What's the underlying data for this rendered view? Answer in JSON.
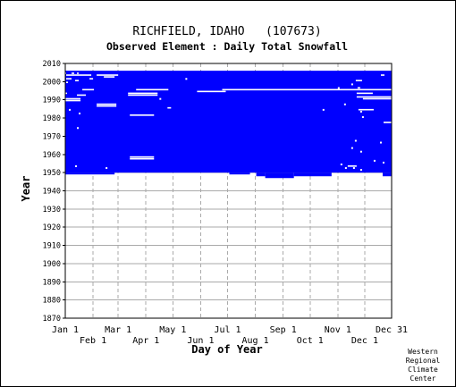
{
  "chart_data": {
    "type": "heatmap",
    "title": "RICHFIELD, IDAHO   (107673)",
    "subtitle": "Observed Element : Daily Total Snowfall",
    "xlabel": "Day of Year",
    "ylabel": "Year",
    "ylim": [
      1870,
      2010
    ],
    "xlim": [
      1,
      365
    ],
    "y_ticks": [
      1870,
      1880,
      1890,
      1900,
      1910,
      1920,
      1930,
      1940,
      1950,
      1960,
      1970,
      1980,
      1990,
      2000,
      2010
    ],
    "x_ticks_top_row": [
      {
        "label": "Jan 1",
        "day": 1
      },
      {
        "label": "Mar 1",
        "day": 60
      },
      {
        "label": "May 1",
        "day": 121
      },
      {
        "label": "Jul 1",
        "day": 182
      },
      {
        "label": "Sep 1",
        "day": 244
      },
      {
        "label": "Nov 1",
        "day": 305
      },
      {
        "label": "Dec 31",
        "day": 365
      }
    ],
    "x_ticks_bottom_row": [
      {
        "label": "Feb 1",
        "day": 32
      },
      {
        "label": "Apr 1",
        "day": 91
      },
      {
        "label": "Jun 1",
        "day": 152
      },
      {
        "label": "Aug 1",
        "day": 213
      },
      {
        "label": "Oct 1",
        "day": 274
      },
      {
        "label": "Dec 1",
        "day": 335
      }
    ],
    "grid": true,
    "colors": {
      "observed": "#0000ff",
      "missing": "#ffffff",
      "grid": "#aaaaaa",
      "frame": "#000000"
    },
    "data_block": {
      "year_start": 1950,
      "year_end": 2005,
      "day_start": 1,
      "day_end": 365
    },
    "lower_edge": [
      {
        "day_start": 1,
        "day_end": 56,
        "year": 1949
      },
      {
        "day_start": 56,
        "day_end": 184,
        "year": 1950
      },
      {
        "day_start": 184,
        "day_end": 207,
        "year": 1949
      },
      {
        "day_start": 207,
        "day_end": 214,
        "year": 1950
      },
      {
        "day_start": 214,
        "day_end": 224,
        "year": 1948
      },
      {
        "day_start": 224,
        "day_end": 256,
        "year": 1947
      },
      {
        "day_start": 256,
        "day_end": 298,
        "year": 1948
      },
      {
        "day_start": 298,
        "day_end": 355,
        "year": 1950
      },
      {
        "day_start": 355,
        "day_end": 365,
        "year": 1948
      }
    ],
    "missing_segments": [
      {
        "year": 2004,
        "day_start": 1,
        "day_end": 2
      },
      {
        "year": 2004,
        "day_start": 8,
        "day_end": 11
      },
      {
        "year": 2004,
        "day_start": 14,
        "day_end": 16
      },
      {
        "year": 2003,
        "day_start": 2,
        "day_end": 30
      },
      {
        "year": 2003,
        "day_start": 36,
        "day_end": 60
      },
      {
        "year": 2002,
        "day_start": 44,
        "day_end": 56
      },
      {
        "year": 2001,
        "day_start": 2,
        "day_end": 8
      },
      {
        "year": 2001,
        "day_start": 28,
        "day_end": 32
      },
      {
        "year": 2000,
        "day_start": 12,
        "day_end": 16
      },
      {
        "year": 1999,
        "day_start": 2,
        "day_end": 4
      },
      {
        "year": 2003,
        "day_start": 353,
        "day_end": 357
      },
      {
        "year": 2000,
        "day_start": 325,
        "day_end": 332
      },
      {
        "year": 1996,
        "day_start": 327,
        "day_end": 330
      },
      {
        "year": 1995,
        "day_start": 20,
        "day_end": 33
      },
      {
        "year": 1995,
        "day_start": 80,
        "day_end": 116
      },
      {
        "year": 1995,
        "day_start": 176,
        "day_end": 365
      },
      {
        "year": 1994,
        "day_start": 148,
        "day_end": 180
      },
      {
        "year": 1993,
        "day_start": 1,
        "day_end": 3
      },
      {
        "year": 1993,
        "day_start": 71,
        "day_end": 104
      },
      {
        "year": 1993,
        "day_start": 326,
        "day_end": 344
      },
      {
        "year": 1992,
        "day_start": 14,
        "day_end": 24
      },
      {
        "year": 1992,
        "day_start": 71,
        "day_end": 104
      },
      {
        "year": 1991,
        "day_start": 326,
        "day_end": 365
      },
      {
        "year": 1990,
        "day_start": 1,
        "day_end": 18
      },
      {
        "year": 1990,
        "day_start": 333,
        "day_end": 365
      },
      {
        "year": 1989,
        "day_start": 1,
        "day_end": 18
      },
      {
        "year": 1987,
        "day_start": 36,
        "day_end": 58
      },
      {
        "year": 1986,
        "day_start": 36,
        "day_end": 58
      },
      {
        "year": 1985,
        "day_start": 115,
        "day_end": 119
      },
      {
        "year": 1984,
        "day_start": 328,
        "day_end": 345
      },
      {
        "year": 1981,
        "day_start": 73,
        "day_end": 100
      },
      {
        "year": 1977,
        "day_start": 356,
        "day_end": 365
      },
      {
        "year": 1958,
        "day_start": 73,
        "day_end": 100
      },
      {
        "year": 1957,
        "day_start": 73,
        "day_end": 100
      },
      {
        "year": 1953,
        "day_start": 316,
        "day_end": 326
      }
    ],
    "speckles": [
      {
        "year": 2001,
        "day": 135
      },
      {
        "year": 1998,
        "day": 320
      },
      {
        "year": 1996,
        "day": 305
      },
      {
        "year": 1990,
        "day": 106
      },
      {
        "year": 1987,
        "day": 312
      },
      {
        "year": 1984,
        "day": 288
      },
      {
        "year": 1984,
        "day": 5
      },
      {
        "year": 1983,
        "day": 330
      },
      {
        "year": 1982,
        "day": 16
      },
      {
        "year": 1980,
        "day": 332
      },
      {
        "year": 1974,
        "day": 14
      },
      {
        "year": 1967,
        "day": 324
      },
      {
        "year": 1966,
        "day": 352
      },
      {
        "year": 1963,
        "day": 320
      },
      {
        "year": 1961,
        "day": 330
      },
      {
        "year": 1956,
        "day": 345
      },
      {
        "year": 1955,
        "day": 355
      },
      {
        "year": 1954,
        "day": 308
      },
      {
        "year": 1952,
        "day": 313
      },
      {
        "year": 1952,
        "day": 322
      },
      {
        "year": 1951,
        "day": 330
      },
      {
        "year": 1953,
        "day": 12
      },
      {
        "year": 1952,
        "day": 46
      }
    ]
  },
  "credit": {
    "lines": [
      "Western",
      "Regional",
      "Climate",
      "Center"
    ]
  }
}
